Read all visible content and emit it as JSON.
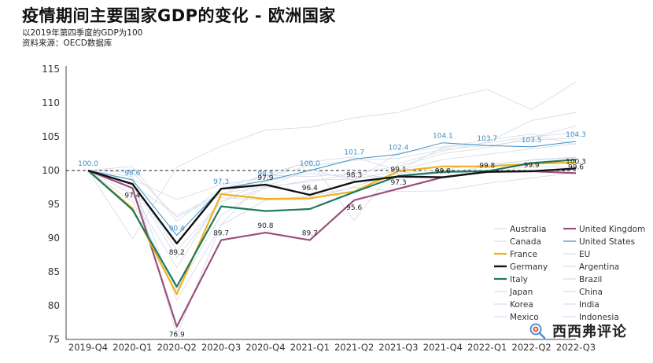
{
  "header": {
    "title": "疫情期间主要国家GDP的变化 - 欧洲国家",
    "subtitle": "以2019年第四季度的GDP为100",
    "source": "资料来源：OECD数据库"
  },
  "watermark": {
    "text": "西西弗评论",
    "icon": "wechat-search-icon"
  },
  "chart_data": {
    "type": "line",
    "x": [
      "2019-Q4",
      "2020-Q1",
      "2020-Q2",
      "2020-Q3",
      "2020-Q4",
      "2021-Q1",
      "2021-Q2",
      "2021-Q3",
      "2021-Q4",
      "2022-Q1",
      "2022-Q2",
      "2022-Q3"
    ],
    "ylim": [
      75,
      115
    ],
    "yticks": [
      75,
      80,
      85,
      90,
      95,
      100,
      105,
      110,
      115
    ],
    "reference_line": 100,
    "legend_position": "bottom-right",
    "series": [
      {
        "name": "Australia",
        "color": "#d7dde8",
        "width": 0.9,
        "values": [
          100,
          99.7,
          93.1,
          96.3,
          99.4,
          101.3,
          102.0,
          100.0,
          103.4,
          104.1,
          105.0,
          105.6
        ]
      },
      {
        "name": "United Kingdom",
        "color": "#9b4f7c",
        "width": 2.2,
        "values": [
          100,
          97.4,
          76.9,
          89.7,
          90.8,
          89.7,
          95.6,
          97.3,
          99.0,
          99.8,
          99.9,
          99.6
        ],
        "labels": [
          null,
          "97.4",
          "76.9",
          "89.7",
          "90.8",
          "89.7",
          "95.6",
          "97.3",
          "99.0",
          "99.8",
          "99.9",
          "99.6"
        ]
      },
      {
        "name": "Canada",
        "color": "#d7dde8",
        "width": 0.9,
        "values": [
          100,
          97.9,
          87.1,
          95.4,
          97.4,
          98.6,
          98.7,
          100.0,
          101.6,
          102.4,
          103.2,
          104.0
        ]
      },
      {
        "name": "United States",
        "color": "#3a8fc7",
        "width": 1.0,
        "values": [
          100,
          98.6,
          90.4,
          97.3,
          98.5,
          100.0,
          101.7,
          102.4,
          104.1,
          103.7,
          103.5,
          104.3
        ],
        "labels": [
          "100.0",
          "98.6",
          "90.4",
          "97.3",
          "98.5",
          "100.0",
          "101.7",
          "102.4",
          "104.1",
          "103.7",
          "103.5",
          "104.3"
        ]
      },
      {
        "name": "France",
        "color": "#f2b01e",
        "width": 2.2,
        "values": [
          100,
          94.4,
          81.7,
          96.5,
          95.8,
          95.9,
          96.9,
          99.9,
          100.6,
          100.6,
          101.0,
          101.2
        ]
      },
      {
        "name": "EU",
        "color": "#d7dde8",
        "width": 0.9,
        "values": [
          100,
          96.5,
          85.6,
          96.0,
          95.6,
          95.7,
          97.6,
          99.6,
          100.2,
          100.9,
          101.5,
          101.9
        ]
      },
      {
        "name": "Germany",
        "color": "#111111",
        "width": 2.4,
        "values": [
          100,
          98.0,
          89.2,
          97.3,
          97.9,
          96.4,
          98.3,
          99.1,
          99.0,
          99.8,
          99.9,
          100.3
        ],
        "labels": [
          null,
          null,
          "89.2",
          null,
          "97.9",
          "96.4",
          "98.3",
          "99.1",
          null,
          null,
          null,
          "100.3"
        ]
      },
      {
        "name": "Argentina",
        "color": "#d7dde8",
        "width": 0.9,
        "values": [
          100,
          95.4,
          82.3,
          93.4,
          97.6,
          100.2,
          98.5,
          102.6,
          103.5,
          104.5,
          105.4,
          103.8
        ]
      },
      {
        "name": "Italy",
        "color": "#1e7a5f",
        "width": 2.2,
        "values": [
          100,
          94.2,
          82.8,
          94.7,
          94.0,
          94.3,
          96.8,
          99.2,
          99.8,
          99.9,
          101.1,
          101.6
        ]
      },
      {
        "name": "Brazil",
        "color": "#d7dde8",
        "width": 0.9,
        "values": [
          100,
          98.1,
          88.2,
          95.4,
          98.4,
          99.6,
          99.0,
          99.1,
          99.6,
          100.6,
          101.6,
          102.0
        ]
      },
      {
        "name": "Japan",
        "color": "#d7dde8",
        "width": 0.9,
        "values": [
          100,
          100.6,
          92.5,
          97.4,
          99.3,
          99.1,
          99.6,
          98.7,
          99.7,
          99.6,
          100.7,
          100.4
        ]
      },
      {
        "name": "China",
        "color": "#d7dde8",
        "width": 0.9,
        "values": [
          100,
          89.9,
          100.5,
          103.6,
          106.0,
          106.4,
          107.8,
          108.6,
          110.5,
          112.0,
          109.0,
          113.1
        ]
      },
      {
        "name": "Korea",
        "color": "#d7dde8",
        "width": 0.9,
        "values": [
          100,
          98.7,
          95.7,
          97.9,
          99.0,
          100.7,
          101.5,
          101.8,
          103.1,
          103.7,
          104.5,
          104.8
        ]
      },
      {
        "name": "India",
        "color": "#d7dde8",
        "width": 0.9,
        "values": [
          100,
          99.1,
          75.6,
          92.0,
          98.9,
          101.5,
          92.6,
          101.0,
          102.9,
          104.2,
          107.4,
          108.6
        ]
      },
      {
        "name": "Mexico",
        "color": "#d7dde8",
        "width": 0.9,
        "values": [
          100,
          98.6,
          80.8,
          91.9,
          95.6,
          96.2,
          97.5,
          96.9,
          97.0,
          98.1,
          98.9,
          99.7
        ]
      },
      {
        "name": "Indonesia",
        "color": "#d7dde8",
        "width": 0.9,
        "values": [
          100,
          97.9,
          93.4,
          96.6,
          97.6,
          98.3,
          99.6,
          100.6,
          102.5,
          103.4,
          104.9,
          106.6
        ]
      }
    ]
  }
}
